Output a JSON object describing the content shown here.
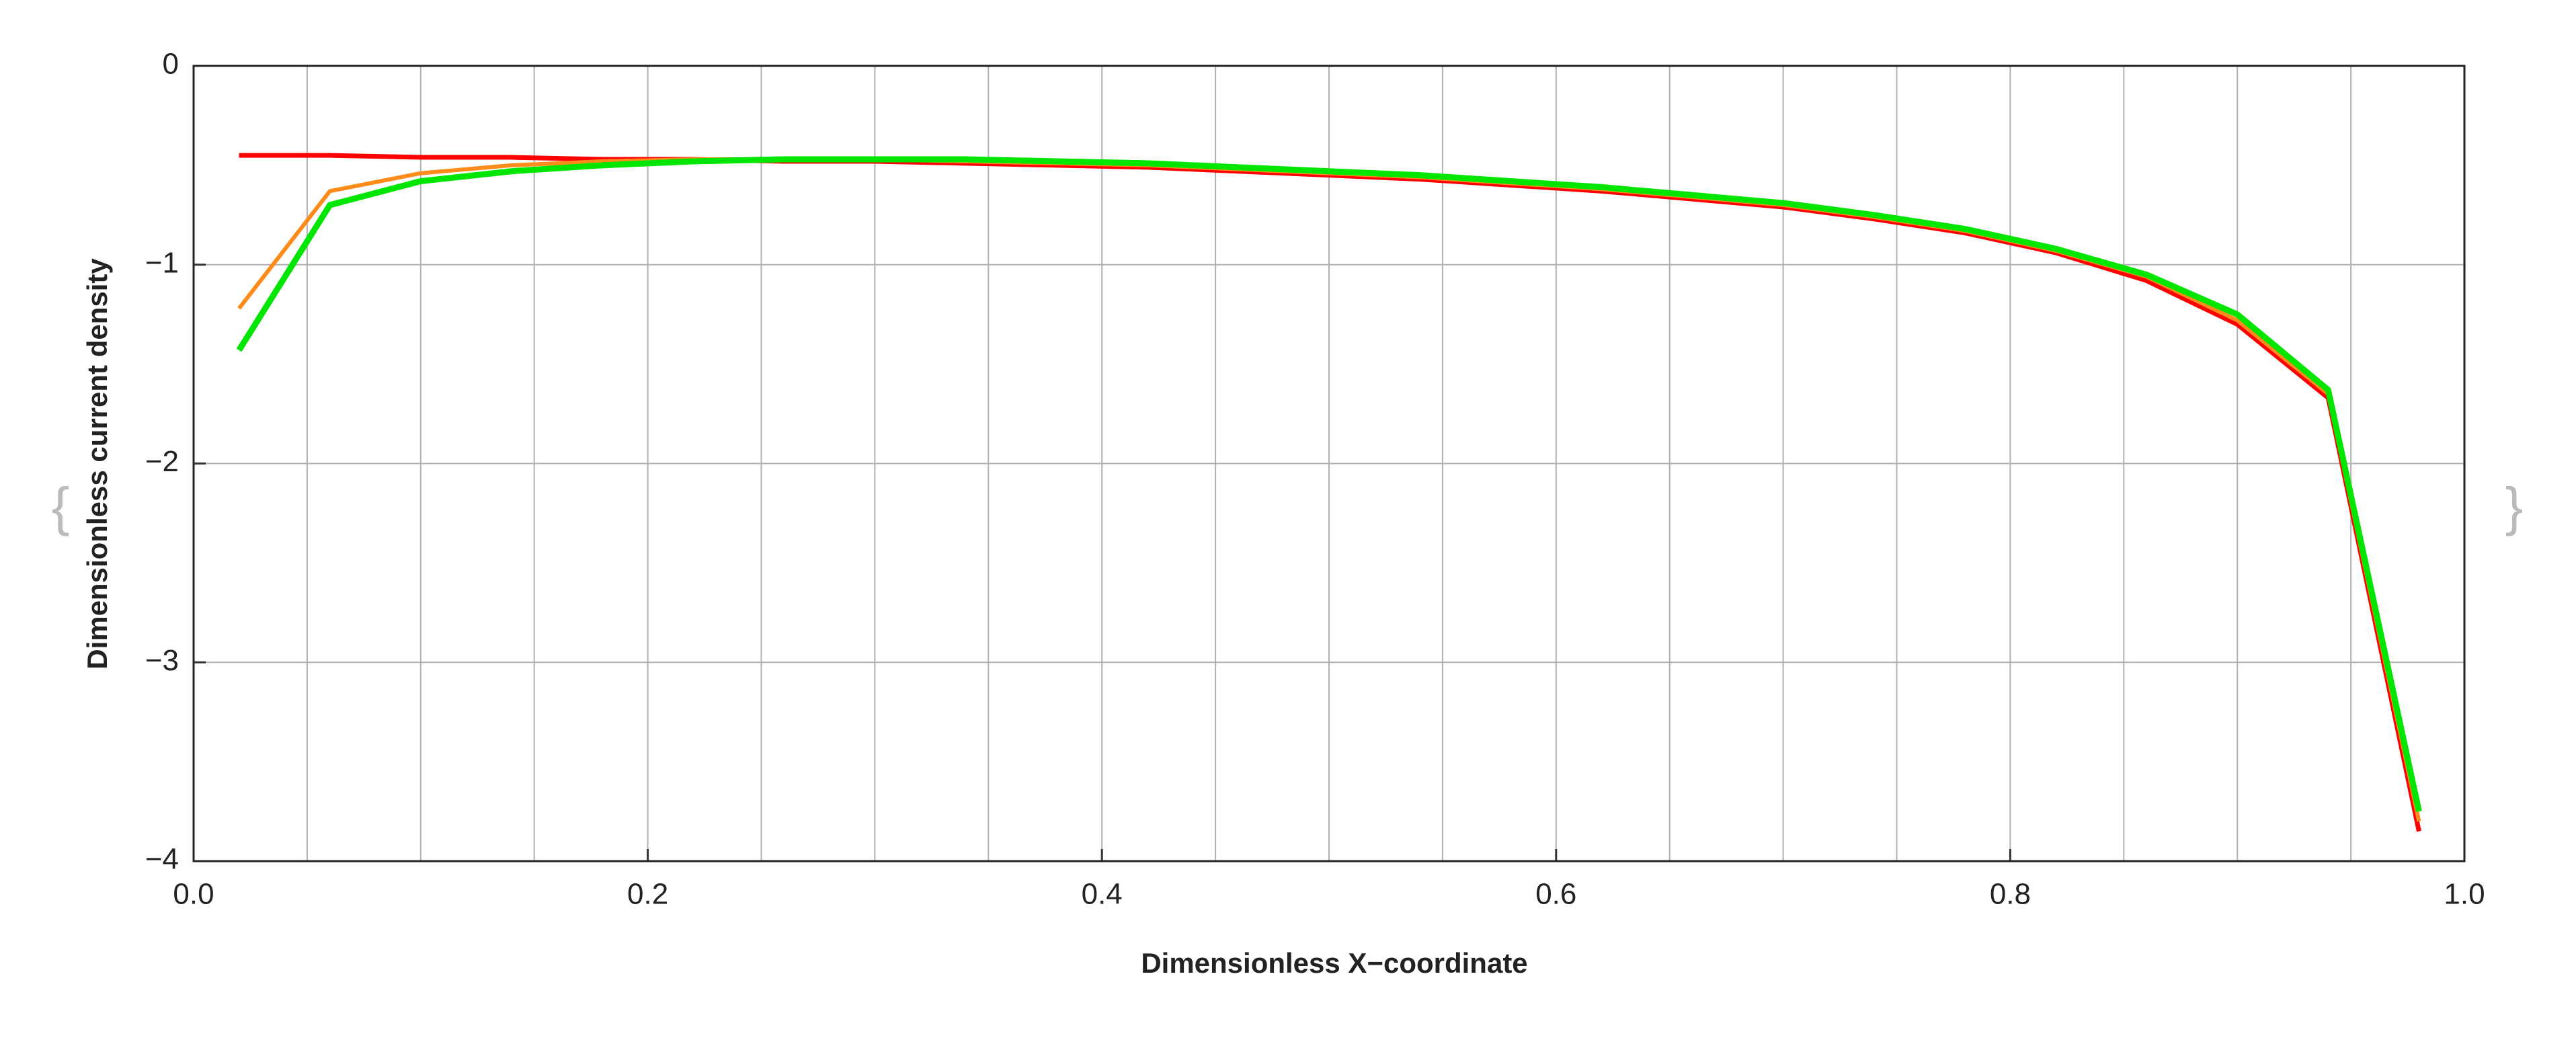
{
  "wrapper": {
    "open": "{",
    "close": "}"
  },
  "chart_data": {
    "type": "line",
    "xlabel": "Dimensionless X−coordinate",
    "ylabel": "Dimensionless current density",
    "x": [
      0.02,
      0.06,
      0.1,
      0.14,
      0.18,
      0.22,
      0.26,
      0.3,
      0.34,
      0.38,
      0.42,
      0.46,
      0.5,
      0.54,
      0.58,
      0.62,
      0.66,
      0.7,
      0.74,
      0.78,
      0.82,
      0.86,
      0.9,
      0.94,
      0.98
    ],
    "series": [
      {
        "color": "#ff0000",
        "values": [
          -0.45,
          -0.45,
          -0.46,
          -0.46,
          -0.47,
          -0.47,
          -0.48,
          -0.48,
          -0.49,
          -0.5,
          -0.51,
          -0.53,
          -0.55,
          -0.57,
          -0.6,
          -0.63,
          -0.67,
          -0.71,
          -0.77,
          -0.84,
          -0.94,
          -1.08,
          -1.3,
          -1.67,
          -3.85
        ]
      },
      {
        "color": "#ff8c1a",
        "values": [
          -1.22,
          -0.63,
          -0.54,
          -0.5,
          -0.48,
          -0.47,
          -0.47,
          -0.47,
          -0.48,
          -0.49,
          -0.5,
          -0.52,
          -0.54,
          -0.56,
          -0.59,
          -0.62,
          -0.66,
          -0.7,
          -0.76,
          -0.83,
          -0.93,
          -1.06,
          -1.28,
          -1.65,
          -3.8
        ]
      },
      {
        "color": "#00e600",
        "values": [
          -1.43,
          -0.7,
          -0.58,
          -0.53,
          -0.5,
          -0.48,
          -0.47,
          -0.47,
          -0.47,
          -0.48,
          -0.49,
          -0.51,
          -0.53,
          -0.55,
          -0.58,
          -0.61,
          -0.65,
          -0.69,
          -0.75,
          -0.82,
          -0.92,
          -1.05,
          -1.25,
          -1.63,
          -3.75
        ]
      }
    ],
    "xlim": [
      0,
      1
    ],
    "ylim": [
      -4,
      0
    ],
    "xticks": [
      {
        "value": 0,
        "label": "0.0"
      },
      0.2,
      0.4,
      0.6,
      0.8,
      {
        "value": 1,
        "label": "1.0"
      }
    ],
    "yticks": [
      0,
      {
        "value": -1,
        "label": "−1"
      },
      {
        "value": -2,
        "label": "−2"
      },
      {
        "value": -3,
        "label": "−3"
      },
      {
        "value": -4,
        "label": "−4"
      }
    ],
    "xgrid": [
      0.05,
      0.1,
      0.15,
      0.2,
      0.25,
      0.3,
      0.35,
      0.4,
      0.45,
      0.5,
      0.55,
      0.6,
      0.65,
      0.7,
      0.75,
      0.8,
      0.85,
      0.9,
      0.95
    ],
    "ygrid": [
      -1,
      -2,
      -3
    ],
    "grid": true
  }
}
